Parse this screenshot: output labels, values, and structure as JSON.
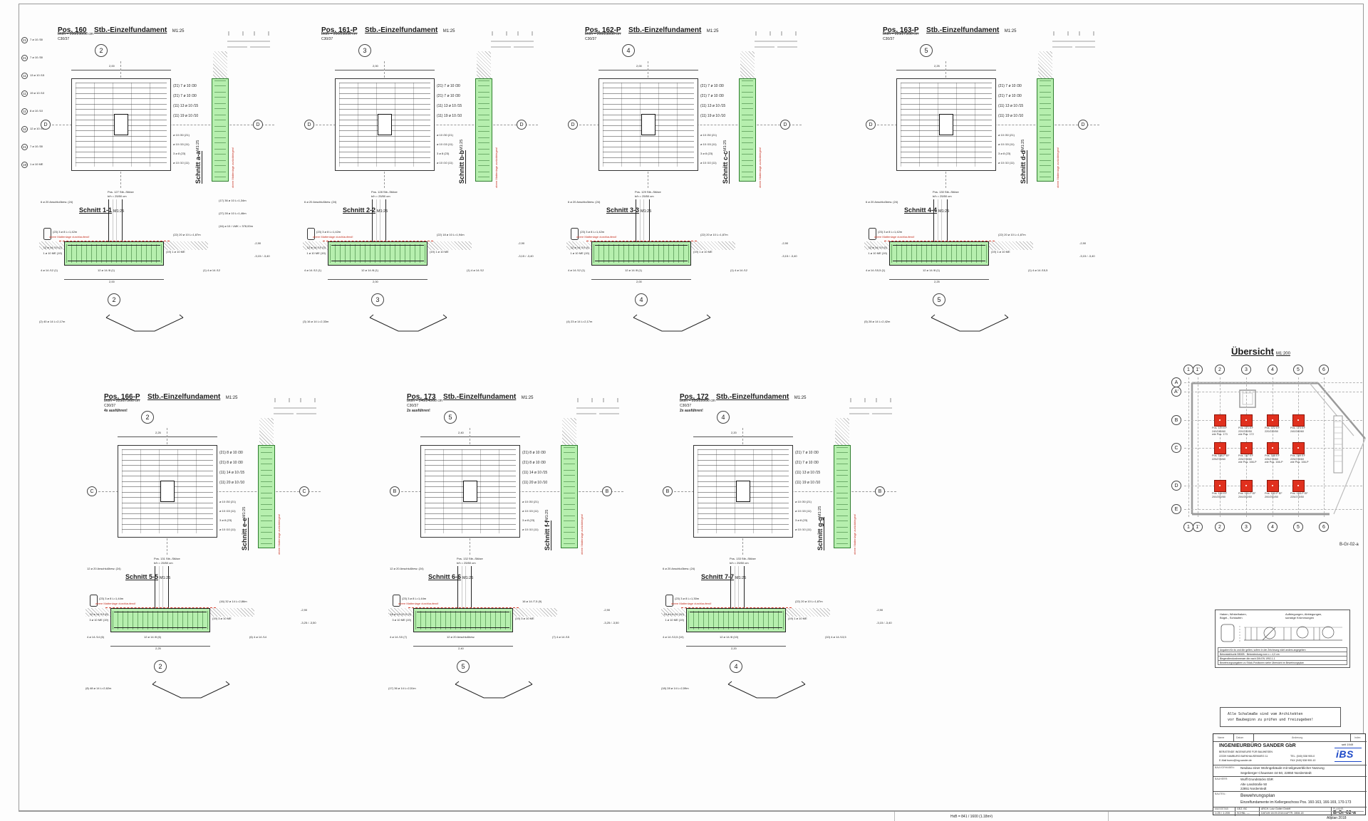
{
  "sheet": {
    "footer_size": "HxB = 841 / 1600  (1.18m²)",
    "app": "Allplan 2018"
  },
  "positions": [
    {
      "name": "Pos. 160",
      "type": "Stb.-Einzelfundament",
      "scale": "M1:25",
      "dims": "b/d/h = 200/250/50 cm",
      "concrete": "C30/37",
      "note": "",
      "axis": "2",
      "letter": "D",
      "dim_w": "2,00",
      "sec_v": "Schnitt a-a",
      "svs": "M1:25",
      "sec_h": "Schnitt 1-1",
      "shs": "M1:25",
      "plan_r": [
        "(21) 7 ø 10 /30",
        "(21) 7 ø 10 /30",
        "(11) 13 ø 10 /15",
        "(11) 19 ø 10 /10"
      ],
      "strip": [
        "ø 10 /30 (21)",
        "ø 10 /15 (11)",
        "3 ø 8 (23)",
        "ø 10 /10 (11)"
      ],
      "side_l": "4 ø 14 /12 (1)",
      "bottom_bar": "12 ø 14 /8 (1)",
      "side_r": "(1) 4 ø 14 /12",
      "anschluss": "6 ø 20 Anschlußbew. (24)",
      "bar23": "(23) 3 ø 8 L=1,42m",
      "me": "(22) 20 ø 10 L=1,87m",
      "foot_l1": "12 ø 14 /10 (2)",
      "foot_l2": "1 ø 10 ME (19)",
      "foot_r": "(19) 1 ø 10 ME",
      "red_note": "obere Mattenlage durchlaufend!",
      "red_v": "obere Mattenlage zurückbiegen!",
      "col1": "Pos. 127  Stb.-Stütze",
      "col2c": "b/h = 25/50 cm",
      "elev1": "-2,90",
      "elev2": "-3,15 / -3,40",
      "vbar": "(2) 40 ø 14 L=2,17m",
      "extra1": "(17) 36 ø 10 L=1,34m",
      "extra2": "(27) 28 ø 10 L=1,46m",
      "extra3": "(16) ø 10 / LMK = 378,00m"
    },
    {
      "name": "Pos. 161-P",
      "type": "Stb.-Einzelfundament",
      "scale": "M1:25",
      "dims": "b/d/h = 200/250/50 cm",
      "concrete": "C30/37",
      "note": "",
      "axis": "3",
      "letter": "D",
      "dim_w": "2,00",
      "sec_v": "Schnitt b-b",
      "svs": "M1:25",
      "sec_h": "Schnitt 2-2",
      "shs": "M1:25",
      "plan_r": [
        "(21) 7 ø 10 /30",
        "(21) 7 ø 10 /30",
        "(11) 13 ø 10 /15",
        "(11) 19 ø 10 /10"
      ],
      "strip": [
        "ø 10 /30 (21)",
        "ø 10 /15 (11)",
        "3 ø 8 (23)",
        "ø 10 /10 (11)"
      ],
      "side_l": "4 ø 14 /12 (1)",
      "bottom_bar": "12 ø 14 /8 (1)",
      "side_r": "(1) 4 ø 14 /12",
      "anschluss": "6 ø 20 Anschlußbew. (24)",
      "bar23": "(23) 3 ø 8 L=1,42m",
      "me": "(22) 18 ø 10 L=1,94m",
      "foot_l1": "12 ø 14 /10 (3)",
      "foot_l2": "1 ø 10 ME (19)",
      "foot_r": "(19) 1 ø 10 ME",
      "red_note": "obere Mattenlage durchlaufend!",
      "red_v": "obere Mattenlage zurückbiegen!",
      "col1": "Pos. 128  Stb.-Stütze",
      "col2c": "b/h = 25/50 cm",
      "elev1": "-2,90",
      "elev2": "-3,15 / -3,40",
      "vbar": "(3) 16 ø 14 L=2,33m",
      "extra1": "",
      "extra2": "",
      "extra3": ""
    },
    {
      "name": "Pos. 162-P",
      "type": "Stb.-Einzelfundament",
      "scale": "M1:25",
      "dims": "b/d/h = 200/250/50 cm",
      "concrete": "C30/37",
      "note": "",
      "axis": "4",
      "letter": "D",
      "dim_w": "2,00",
      "sec_v": "Schnitt c-c",
      "svs": "M1:25",
      "sec_h": "Schnitt 3-3",
      "shs": "M1:25",
      "plan_r": [
        "(21) 7 ø 10 /30",
        "(21) 7 ø 10 /30",
        "(11) 13 ø 10 /15",
        "(11) 19 ø 10 /10"
      ],
      "strip": [
        "ø 10 /30 (21)",
        "ø 10 /15 (11)",
        "3 ø 8 (23)",
        "ø 10 /10 (11)"
      ],
      "side_l": "4 ø 14 /12 (1)",
      "bottom_bar": "12 ø 14 /8 (1)",
      "side_r": "(1) 4 ø 14 /12",
      "anschluss": "6 ø 20 Anschlußbew. (24)",
      "bar23": "(23) 3 ø 8 L=1,42m",
      "me": "(22) 20 ø 10 L=1,87m",
      "foot_l1": "12 ø 14 /10 (4)",
      "foot_l2": "1 ø 10 ME (19)",
      "foot_r": "(19) 1 ø 10 ME",
      "red_note": "obere Mattenlage durchlaufend!",
      "red_v": "obere Mattenlage zurückbiegen!",
      "col1": "Pos. 129  Stb.-Stütze",
      "col2c": "b/h = 25/50 cm",
      "elev1": "-2,90",
      "elev2": "-3,15 / -3,40",
      "vbar": "(4) 23 ø 14 L=2,17m",
      "extra1": "",
      "extra2": "",
      "extra3": ""
    },
    {
      "name": "Pos. 163-P",
      "type": "Stb.-Einzelfundament",
      "scale": "M1:25",
      "dims": "b/d/h = 225/275/50 cm",
      "concrete": "C30/37",
      "note": "",
      "axis": "5",
      "letter": "D",
      "dim_w": "2,25",
      "sec_v": "Schnitt d-d",
      "svs": "M1:25",
      "sec_h": "Schnitt 4-4",
      "shs": "M1:25",
      "plan_r": [
        "(21) 7 ø 10 /30",
        "(21) 7 ø 10 /30",
        "(11) 13 ø 10 /15",
        "(11) 19 ø 10 /10"
      ],
      "strip": [
        "ø 10 /30 (21)",
        "ø 10 /15 (11)",
        "3 ø 8 (23)",
        "ø 10 /10 (11)"
      ],
      "side_l": "4 ø 14 /15,5 (1)",
      "bottom_bar": "12 ø 14 /8 (1)",
      "side_r": "(1) 4 ø 14 /15,5",
      "anschluss": "6 ø 20 Anschlußbew. (24)",
      "bar23": "(23) 3 ø 8 L=1,42m",
      "me": "(22) 20 ø 10 L=1,87m",
      "foot_l1": "12 ø 14 /10 (5)",
      "foot_l2": "1 ø 10 ME (19)",
      "foot_r": "(19) 1 ø 10 ME",
      "red_note": "obere Mattenlage durchlaufend!",
      "red_v": "obere Mattenlage zurückbiegen!",
      "col1": "Pos. 130  Stb.-Stütze",
      "col2c": "b/h = 25/50 cm",
      "elev1": "-2,90",
      "elev2": "-3,15 / -3,40",
      "vbar": "(5) 28 ø 14 L=2,42m",
      "extra1": "",
      "extra2": "",
      "extra3": ""
    },
    {
      "name": "Pos. 166-P",
      "type": "Stb.-Einzelfundament",
      "scale": "M1:25",
      "dims": "b/d/h = 225/275/60 cm",
      "concrete": "C30/37",
      "note": "4x ausführen!",
      "axis": "2",
      "letter": "C",
      "dim_w": "2,25",
      "sec_v": "Schnitt e-e",
      "svs": "M1:25",
      "sec_h": "Schnitt 5-5",
      "shs": "M1:25",
      "plan_r": [
        "(21) 8 ø 10 /30",
        "(21) 8 ø 10 /30",
        "(11) 14 ø 10 /15",
        "(11) 20 ø 10 /10"
      ],
      "strip": [
        "ø 10 /30 (21)",
        "ø 10 /15 (11)",
        "3 ø 8 (23)",
        "ø 10 /10 (11)"
      ],
      "side_l": "4 ø 14 /14 (6)",
      "bottom_bar": "12 ø 14 /8 (6)",
      "side_r": "(6) 4 ø 14 /14",
      "anschluss": "12 ø 20 Anschlußbew. (24)",
      "bar23": "(23) 3 ø 8 L=1,44m",
      "me": "(16) 32 ø 14 L=2,86m",
      "foot_l1": "12 ø 14 /10 (6)",
      "foot_l2": "3 ø 10 ME (19)",
      "foot_r": "(19) 3 ø 10 ME",
      "red_note": "obere Mattenlage durchlaufend!",
      "red_v": "obere Mattenlage zurückbiegen!",
      "col1": "Pos. 131  Stb.-Stütze",
      "col2c": "b/h = 25/50 cm",
      "elev1": "-2,90",
      "elev2": "-3,25 / -3,50",
      "vbar": "(8) 48 ø 14 L=2,62m",
      "extra1": "",
      "extra2": "",
      "extra3": ""
    },
    {
      "name": "Pos. 173",
      "type": "Stb.-Einzelfundament",
      "scale": "M1:25",
      "dims": "b/d/h = 240/240/60 cm",
      "concrete": "C30/37",
      "note": "2x ausführen!",
      "axis": "5",
      "letter": "B",
      "dim_w": "2,40",
      "sec_v": "Schnitt f-f",
      "svs": "M1:25",
      "sec_h": "Schnitt 6-6",
      "shs": "M1:25",
      "plan_r": [
        "(21) 8 ø 10 /30",
        "(21) 8 ø 10 /30",
        "(11) 14 ø 10 /15",
        "(11) 20 ø 10 /10"
      ],
      "strip": [
        "ø 10 /30 (21)",
        "ø 10 /15 (11)",
        "3 ø 8 (23)",
        "ø 10 /10 (11)"
      ],
      "side_l": "4 ø 14 /15 (7)",
      "bottom_bar": "12 ø 20 Anschlußbew.",
      "side_r": "(7) 4 ø 14 /15",
      "anschluss": "12 ø 20 Anschlußbew. (24)",
      "bar23": "(23) 3 ø 8 L=1,44m",
      "me": "16 ø 14 /7,5 (9)",
      "foot_l1": "16 ø 14 /13,5 (9)",
      "foot_l2": "3 ø 10 ME (19)",
      "foot_r": "(19) 3 ø 10 ME",
      "red_note": "obere Mattenlage durchlaufend!",
      "red_v": "obere Mattenlage zurückbiegen!",
      "col1": "Pos. 132  Stb.-Stütze",
      "col2c": "b/h = 25/50 cm",
      "elev1": "-2,90",
      "elev2": "-3,25 / -3,50",
      "vbar": "(17) 36 ø 14 L=2,51m",
      "extra1": "",
      "extra2": "",
      "extra3": ""
    },
    {
      "name": "Pos. 172",
      "type": "Stb.-Einzelfundament",
      "scale": "M1:25",
      "dims": "b/d/h = 220/220/50 cm",
      "concrete": "C30/37",
      "note": "2x ausführen!",
      "axis": "4",
      "letter": "B",
      "dim_w": "2,20",
      "sec_v": "Schnitt g-g",
      "svs": "M1:25",
      "sec_h": "Schnitt 7-7",
      "shs": "M1:25",
      "plan_r": [
        "(21) 7 ø 10 /30",
        "(21) 7 ø 10 /30",
        "(11) 13 ø 10 /15",
        "(11) 19 ø 10 /10"
      ],
      "strip": [
        "ø 10 /30 (21)",
        "ø 10 /15 (11)",
        "3 ø 8 (23)",
        "ø 10 /10 (11)"
      ],
      "side_l": "4 ø 14 /13,5 (10)",
      "bottom_bar": "12 ø 14 /8 (10)",
      "side_r": "(10) 4 ø 14 /13,5",
      "anschluss": "6 ø 20 Anschlußbew. (24)",
      "bar23": "(23) 3 ø 8 L=1,30m",
      "me": "(22) 20 ø 10 L=1,87m",
      "foot_l1": "12 ø 14 /10 (10)",
      "foot_l2": "1 ø 10 ME (19)",
      "foot_r": "(19) 1 ø 10 ME",
      "red_note": "obere Mattenlage durchlaufend!",
      "red_v": "obere Mattenlage zurückbiegen!",
      "col1": "Pos. 133  Stb.-Stütze",
      "col2c": "b/h = 25/50 cm",
      "elev1": "-2,90",
      "elev2": "-3,15 / -3,40",
      "vbar": "(18) 28 ø 14 L=2,59m",
      "extra1": "",
      "extra2": "",
      "extra3": ""
    }
  ],
  "left_marks": [
    {
      "no": "21",
      "label": "7 ø 10 /30"
    },
    {
      "no": "21",
      "label": "7 ø 10 /30"
    },
    {
      "no": "11",
      "label": "13 ø 10 /15"
    },
    {
      "no": "11",
      "label": "19 ø 10 /10"
    },
    {
      "no": "11",
      "label": "8 ø 10 /10"
    },
    {
      "no": "11",
      "label": "12 ø 10 /15"
    },
    {
      "no": "21",
      "label": "7 ø 10 /30"
    },
    {
      "no": "19",
      "label": "1 ø 10 ME"
    }
  ],
  "uebersicht": {
    "title": "Übersicht",
    "scale": "M1:200",
    "cols": [
      "1",
      "1'",
      "2",
      "3",
      "4",
      "5",
      "6"
    ],
    "rows": [
      "A",
      "A'",
      "B",
      "C",
      "D",
      "E"
    ],
    "code": "B-Gr-02-a",
    "foundations": [
      {
        "c": 0,
        "r": 0,
        "l1": "Pos. 170  EF",
        "l2": "240/240/60",
        "l3": "wie Pos. 173"
      },
      {
        "c": 1,
        "r": 0,
        "l1": "Pos. 171  EF",
        "l2": "220/220/50",
        "l3": "wie Pos. 172"
      },
      {
        "c": 2,
        "r": 0,
        "l1": "Pos. 172  EF",
        "l2": "220/220/50",
        "l3": ""
      },
      {
        "c": 3,
        "r": 0,
        "l1": "Pos. 173  EF",
        "l2": "240/240/60",
        "l3": ""
      },
      {
        "c": 0,
        "r": 1,
        "l1": "Pos. 166-P  EF",
        "l2": "225/275/60",
        "l3": ""
      },
      {
        "c": 1,
        "r": 1,
        "l1": "Pos. 167  EF",
        "l2": "225/275/60",
        "l3": "wie Pos. 166-P"
      },
      {
        "c": 2,
        "r": 1,
        "l1": "Pos. 168  EF",
        "l2": "225/275/60",
        "l3": "wie Pos. 166-P"
      },
      {
        "c": 3,
        "r": 1,
        "l1": "Pos. 169  EF",
        "l2": "225/275/60",
        "l3": "wie Pos. 166-P"
      },
      {
        "c": 0,
        "r": 2,
        "l1": "Pos. 160  EF",
        "l2": "200/250/50",
        "l3": ""
      },
      {
        "c": 1,
        "r": 2,
        "l1": "Pos. 161-P  EF",
        "l2": "200/250/50",
        "l3": ""
      },
      {
        "c": 2,
        "r": 2,
        "l1": "Pos. 162-P  EF",
        "l2": "200/250/50",
        "l3": ""
      },
      {
        "c": 3,
        "r": 2,
        "l1": "Pos. 163-P  EF",
        "l2": "225/275/50",
        "l3": ""
      }
    ]
  },
  "legend": {
    "left1": "Haken, Winkelhaken,",
    "left2": "Bügel-, Schlaufen",
    "right1": "Aufbiegungen, Abbiegungen,",
    "right2": "sonstige Krümmungen",
    "rows": [
      "Angaben für ds und dbr gelten, sofern in der Zeichnung nicht anders angegeben",
      "Betonstahlsorte  B500B   ·   Betondeckung  nom c = 4,0 cm",
      "Biegerollendurchmesser dbr nach DIN EN 1992-1-1",
      "Bewehrungsangaben zu Stück-Positionen siehe Übersicht im Bewehrungsplan"
    ]
  },
  "note_box": {
    "line1": "Alle Schalmaße sind vom Architekten",
    "line2": "vor Baubeginn zu prüfen und freizugeben!"
  },
  "title_block": {
    "header": [
      "Name",
      "Datum",
      "Änderung",
      "Index"
    ],
    "company": "INGENIEURBÜRO SANDER GbR",
    "company_sub": "BERATENDE INGENIEURE FÜR BAUWESEN",
    "addr1": "22339 HAMBURG  BARKHAUSENWEG 11",
    "tel": "TEL. (040) 538 900-0",
    "addr2": "E-Mail buero@ing-sander.de",
    "fax": "FAX (040) 538 900-10",
    "seit": "seit 1949",
    "logo": "iBS",
    "bv_label": "BAUVORHABEN:",
    "bv1": "Neubau einer Wohngebäude mit teilgewerblicher Nutzung",
    "bv2": "Segeberger Chaussee 44-50,   22850 Norderstedt",
    "bh_label": "BAUHERR:",
    "bh1": "Wulff Grundstücks GbR",
    "bh2": "Alte Landstraße 50",
    "bh3": "22851 Norderstedt",
    "bt_label": "BAUTEIL:",
    "bt1": "Bewehrungsplan",
    "bt2": "Einzelfundamente im Kellergeschoss Pos. 160-163, 166-169, 170-173",
    "m_label": "MASSSTAB",
    "m_vals": "1:25 / 1:200",
    "gez": "GEZ.  BC",
    "schnl": "SCHNL.  —",
    "arch": "ARCH.  Lutz Gotter GmbH",
    "datum_auftr": "DATUM 18.09.2018    AUFTR. 2808-18",
    "plannr_label": "PLANNR.",
    "plannr": "B-Gr-02-a"
  }
}
